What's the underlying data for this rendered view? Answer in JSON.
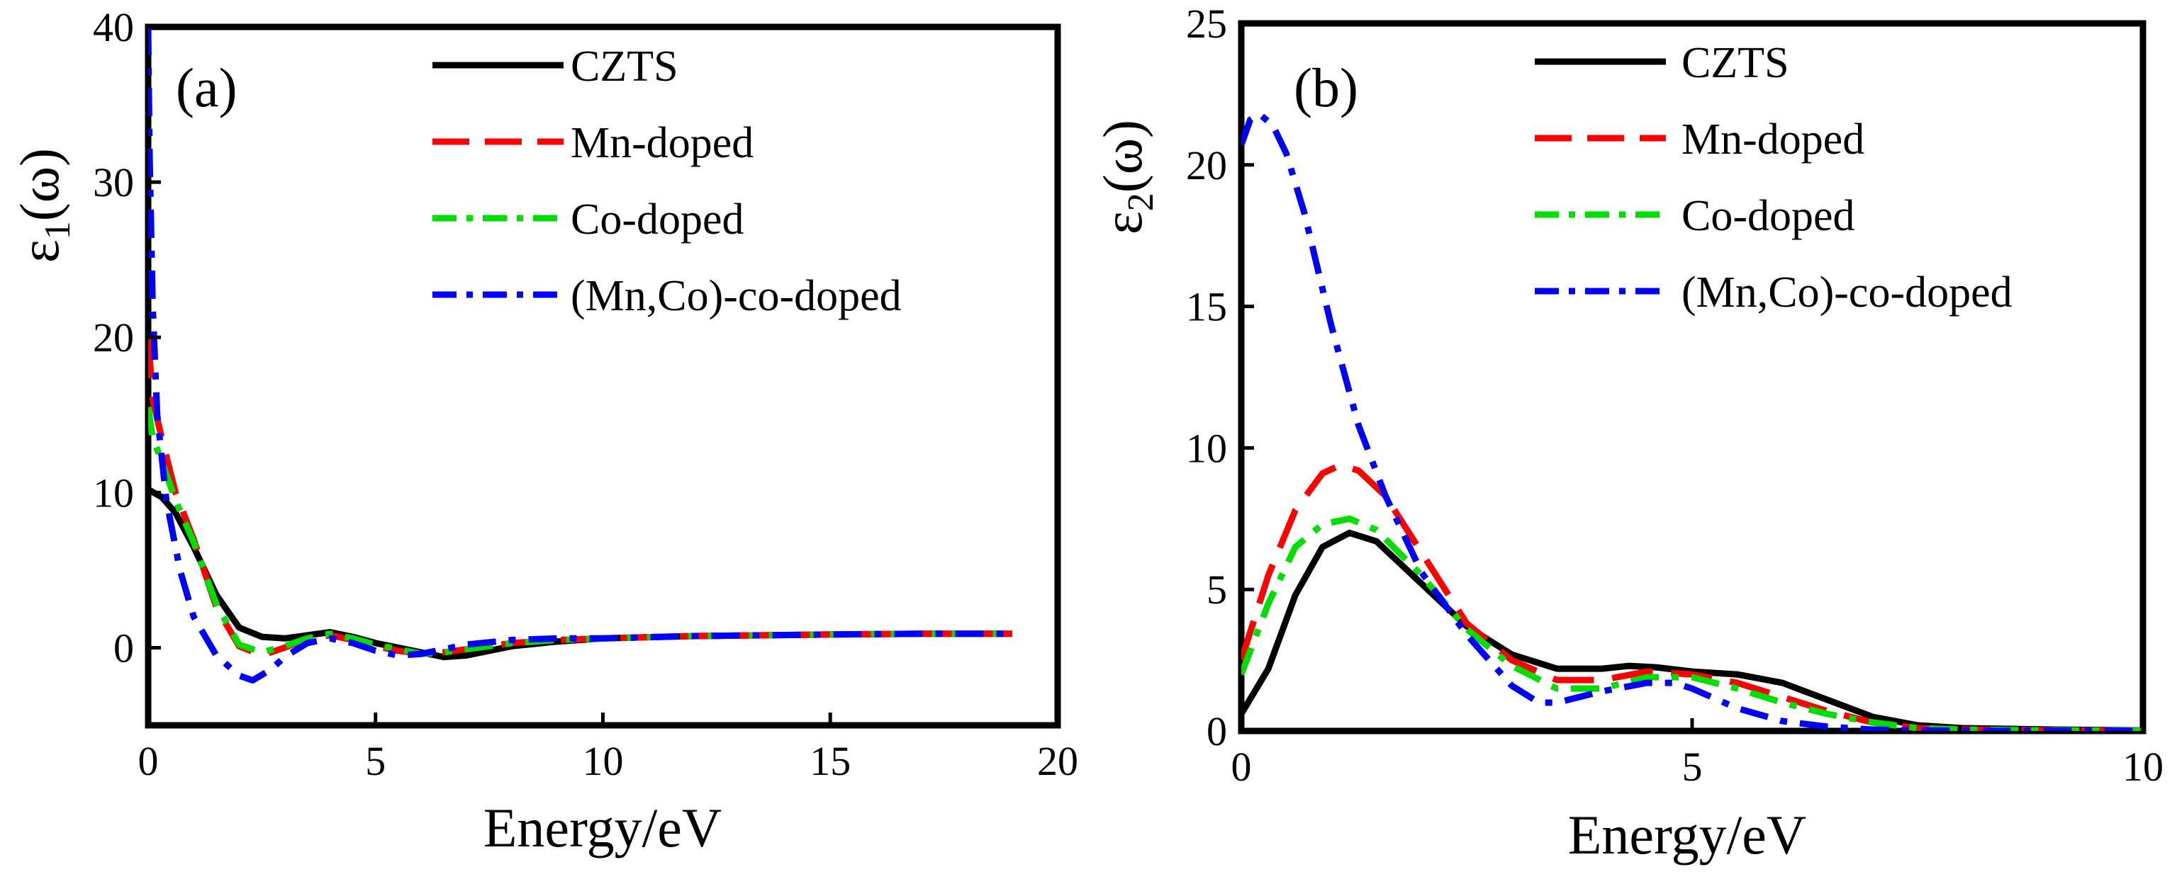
{
  "chart_data": [
    {
      "type": "line",
      "panel_label": "(a)",
      "xlabel": "Energy/eV",
      "ylabel": {
        "symbol": "ε",
        "subscript": "1",
        "suffix": "(ω)"
      },
      "xlim": [
        0,
        20
      ],
      "ylim": [
        -5,
        40
      ],
      "xticks": [
        0,
        5,
        10,
        15,
        20
      ],
      "yticks": [
        0,
        10,
        20,
        30,
        40
      ],
      "grid": false,
      "legend_position": "top-right",
      "series": [
        {
          "name": "CZTS",
          "color": "#000000",
          "style": "solid",
          "x": [
            0,
            0.3,
            0.6,
            1,
            1.5,
            2,
            2.5,
            3,
            3.5,
            4,
            4.5,
            5,
            5.5,
            6,
            6.5,
            7,
            7.5,
            8,
            9,
            10,
            12,
            15,
            17,
            19
          ],
          "y": [
            10.2,
            9.7,
            8.7,
            6.5,
            3.4,
            1.3,
            0.7,
            0.6,
            0.8,
            1.0,
            0.7,
            0.3,
            0,
            -0.3,
            -0.6,
            -0.5,
            -0.2,
            0.1,
            0.4,
            0.6,
            0.75,
            0.85,
            0.9,
            0.9
          ]
        },
        {
          "name": "Mn-doped",
          "color": "#ff0000",
          "style": "dashed",
          "x": [
            0,
            0.1,
            0.3,
            0.6,
            1,
            1.5,
            2,
            2.5,
            3,
            3.5,
            4,
            4.5,
            5,
            5.5,
            6,
            6.5,
            7,
            7.5,
            8,
            9,
            10,
            12,
            15,
            17,
            19
          ],
          "y": [
            20,
            16,
            13.5,
            10,
            7,
            2.6,
            0.1,
            -0.5,
            0,
            0.6,
            0.8,
            0.5,
            0.1,
            -0.2,
            -0.4,
            -0.3,
            -0.1,
            0.1,
            0.3,
            0.5,
            0.6,
            0.75,
            0.85,
            0.9,
            0.9
          ]
        },
        {
          "name": "Co-doped",
          "color": "#00dd00",
          "style": "dashdot",
          "x": [
            0,
            0.1,
            0.3,
            0.6,
            1,
            1.5,
            2,
            2.5,
            3,
            3.5,
            4,
            4.5,
            5,
            5.5,
            6,
            6.5,
            7,
            7.5,
            8,
            9,
            10,
            12,
            15,
            17,
            19
          ],
          "y": [
            15.5,
            13.5,
            12,
            9.5,
            6.8,
            2.8,
            0.2,
            -0.3,
            0.1,
            0.6,
            0.9,
            0.6,
            0.2,
            -0.1,
            -0.4,
            -0.3,
            -0.1,
            0.1,
            0.3,
            0.5,
            0.6,
            0.75,
            0.85,
            0.9,
            0.9
          ]
        },
        {
          "name": "(Mn,Co)-co-doped",
          "color": "#0000ff",
          "style": "dashdot",
          "x": [
            0,
            0.03,
            0.1,
            0.2,
            0.4,
            0.7,
            1,
            1.5,
            2,
            2.3,
            2.7,
            3,
            3.5,
            4,
            4.5,
            5,
            5.5,
            6,
            6.5,
            7,
            8,
            9,
            10,
            12,
            15,
            17,
            19
          ],
          "y": [
            40,
            32,
            22,
            15,
            9.5,
            5,
            2,
            -0.5,
            -1.8,
            -2.1,
            -1.4,
            -0.6,
            0.3,
            0.6,
            0.3,
            -0.2,
            -0.5,
            -0.4,
            -0.1,
            0.2,
            0.5,
            0.6,
            0.6,
            0.75,
            0.85,
            0.9,
            0.9
          ]
        }
      ]
    },
    {
      "type": "line",
      "panel_label": "(b)",
      "xlabel": "Energy/eV",
      "ylabel": {
        "symbol": "ε",
        "subscript": "2",
        "suffix": "(ω)"
      },
      "xlim": [
        0,
        10
      ],
      "ylim": [
        0,
        25
      ],
      "xticks": [
        0,
        5,
        10
      ],
      "yticks": [
        0,
        5,
        10,
        15,
        20,
        25
      ],
      "grid": false,
      "legend_position": "top-right",
      "series": [
        {
          "name": "CZTS",
          "color": "#000000",
          "style": "solid",
          "x": [
            0,
            0.3,
            0.6,
            0.9,
            1.2,
            1.5,
            2,
            2.5,
            3,
            3.5,
            4,
            4.3,
            4.6,
            5,
            5.5,
            6,
            6.5,
            7,
            7.5,
            8,
            9,
            10
          ],
          "y": [
            0.6,
            2.2,
            4.8,
            6.5,
            7.0,
            6.7,
            5.2,
            3.7,
            2.7,
            2.2,
            2.2,
            2.3,
            2.25,
            2.1,
            2.0,
            1.7,
            1.1,
            0.5,
            0.2,
            0.1,
            0.05,
            0.02
          ]
        },
        {
          "name": "Mn-doped",
          "color": "#ff0000",
          "style": "dashed",
          "x": [
            0,
            0.3,
            0.6,
            0.9,
            1.1,
            1.3,
            1.6,
            2,
            2.5,
            3,
            3.5,
            4,
            4.5,
            5,
            5.5,
            6,
            6.5,
            7,
            7.5,
            8,
            9,
            10
          ],
          "y": [
            2.5,
            5.5,
            7.8,
            9.1,
            9.4,
            9.2,
            8.3,
            6.3,
            3.8,
            2.5,
            1.8,
            1.8,
            2.1,
            2.0,
            1.7,
            1.2,
            0.7,
            0.3,
            0.1,
            0.05,
            0.02,
            0.01
          ]
        },
        {
          "name": "Co-doped",
          "color": "#00dd00",
          "style": "dashdot",
          "x": [
            0,
            0.3,
            0.6,
            0.9,
            1.2,
            1.5,
            2,
            2.5,
            3,
            3.5,
            4,
            4.5,
            5,
            5.5,
            6,
            6.5,
            7,
            7.5,
            8,
            9,
            10
          ],
          "y": [
            2.0,
            4.5,
            6.5,
            7.3,
            7.5,
            7.1,
            5.5,
            3.6,
            2.3,
            1.5,
            1.5,
            1.9,
            1.9,
            1.5,
            1.0,
            0.6,
            0.3,
            0.1,
            0.05,
            0.02,
            0.01
          ]
        },
        {
          "name": "(Mn,Co)-co-doped",
          "color": "#0000ff",
          "style": "dashdot",
          "x": [
            0,
            0.1,
            0.2,
            0.35,
            0.5,
            0.7,
            1,
            1.3,
            1.6,
            2,
            2.5,
            3,
            3.3,
            3.5,
            4,
            4.5,
            4.8,
            5,
            5.5,
            6,
            6.5,
            7,
            7.5,
            8,
            9,
            10
          ],
          "y": [
            20.7,
            21.6,
            21.8,
            21.4,
            20.4,
            18.3,
            14.3,
            10.8,
            8.3,
            5.6,
            3.4,
            1.6,
            1.0,
            1.0,
            1.4,
            1.7,
            1.7,
            1.5,
            0.8,
            0.35,
            0.15,
            0.05,
            0.02,
            0.01,
            0.0,
            0.0
          ]
        }
      ]
    }
  ]
}
